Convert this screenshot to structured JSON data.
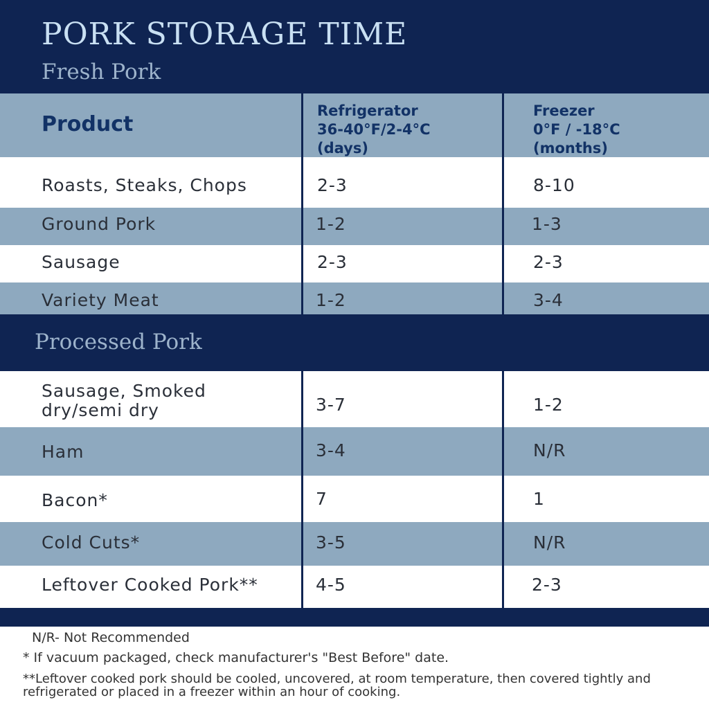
{
  "title": "PORK STORAGE TIME",
  "fresh_section": "Fresh Pork",
  "processed_section": "Processed Pork",
  "columns": {
    "product": "Product",
    "fridge": [
      "Refrigerator",
      "36-40°F/2-4°C",
      "(days)"
    ],
    "freezer": [
      "Freezer",
      "0°F / -18°C",
      "(months)"
    ]
  },
  "fresh_rows": [
    {
      "product": "Roasts, Steaks, Chops",
      "fridge": "2-3",
      "freezer": "8-10"
    },
    {
      "product": "Ground Pork",
      "fridge": "1-2",
      "freezer": "1-3"
    },
    {
      "product": "Sausage",
      "fridge": "2-3",
      "freezer": "2-3"
    },
    {
      "product": "Variety Meat",
      "fridge": "1-2",
      "freezer": "3-4"
    }
  ],
  "processed_rows": [
    {
      "product": [
        "Sausage, Smoked",
        "dry/semi dry"
      ],
      "fridge": "3-7",
      "freezer": "1-2"
    },
    {
      "product": "Ham",
      "fridge": "3-4",
      "freezer": "N/R"
    },
    {
      "product": "Bacon*",
      "fridge": "7",
      "freezer": "1"
    },
    {
      "product": "Cold Cuts*",
      "fridge": "3-5",
      "freezer": "N/R"
    },
    {
      "product": "Leftover Cooked Pork**",
      "fridge": "4-5",
      "freezer": "2-3"
    }
  ],
  "footnotes": {
    "nr": "N/R- Not Recommended",
    "vacuum": "* If vacuum packaged, check manufacturer's \"Best Before\" date.",
    "leftover": "**Leftover cooked pork should be cooled, uncovered, at room temperature, then covered tightly and refrigerated or placed in a freezer within an hour of cooking."
  },
  "colors": {
    "navy": "#0f2452",
    "row_blue": "#8ea9bf",
    "title_text": "#c9e0f3",
    "header_text": "#123266"
  }
}
